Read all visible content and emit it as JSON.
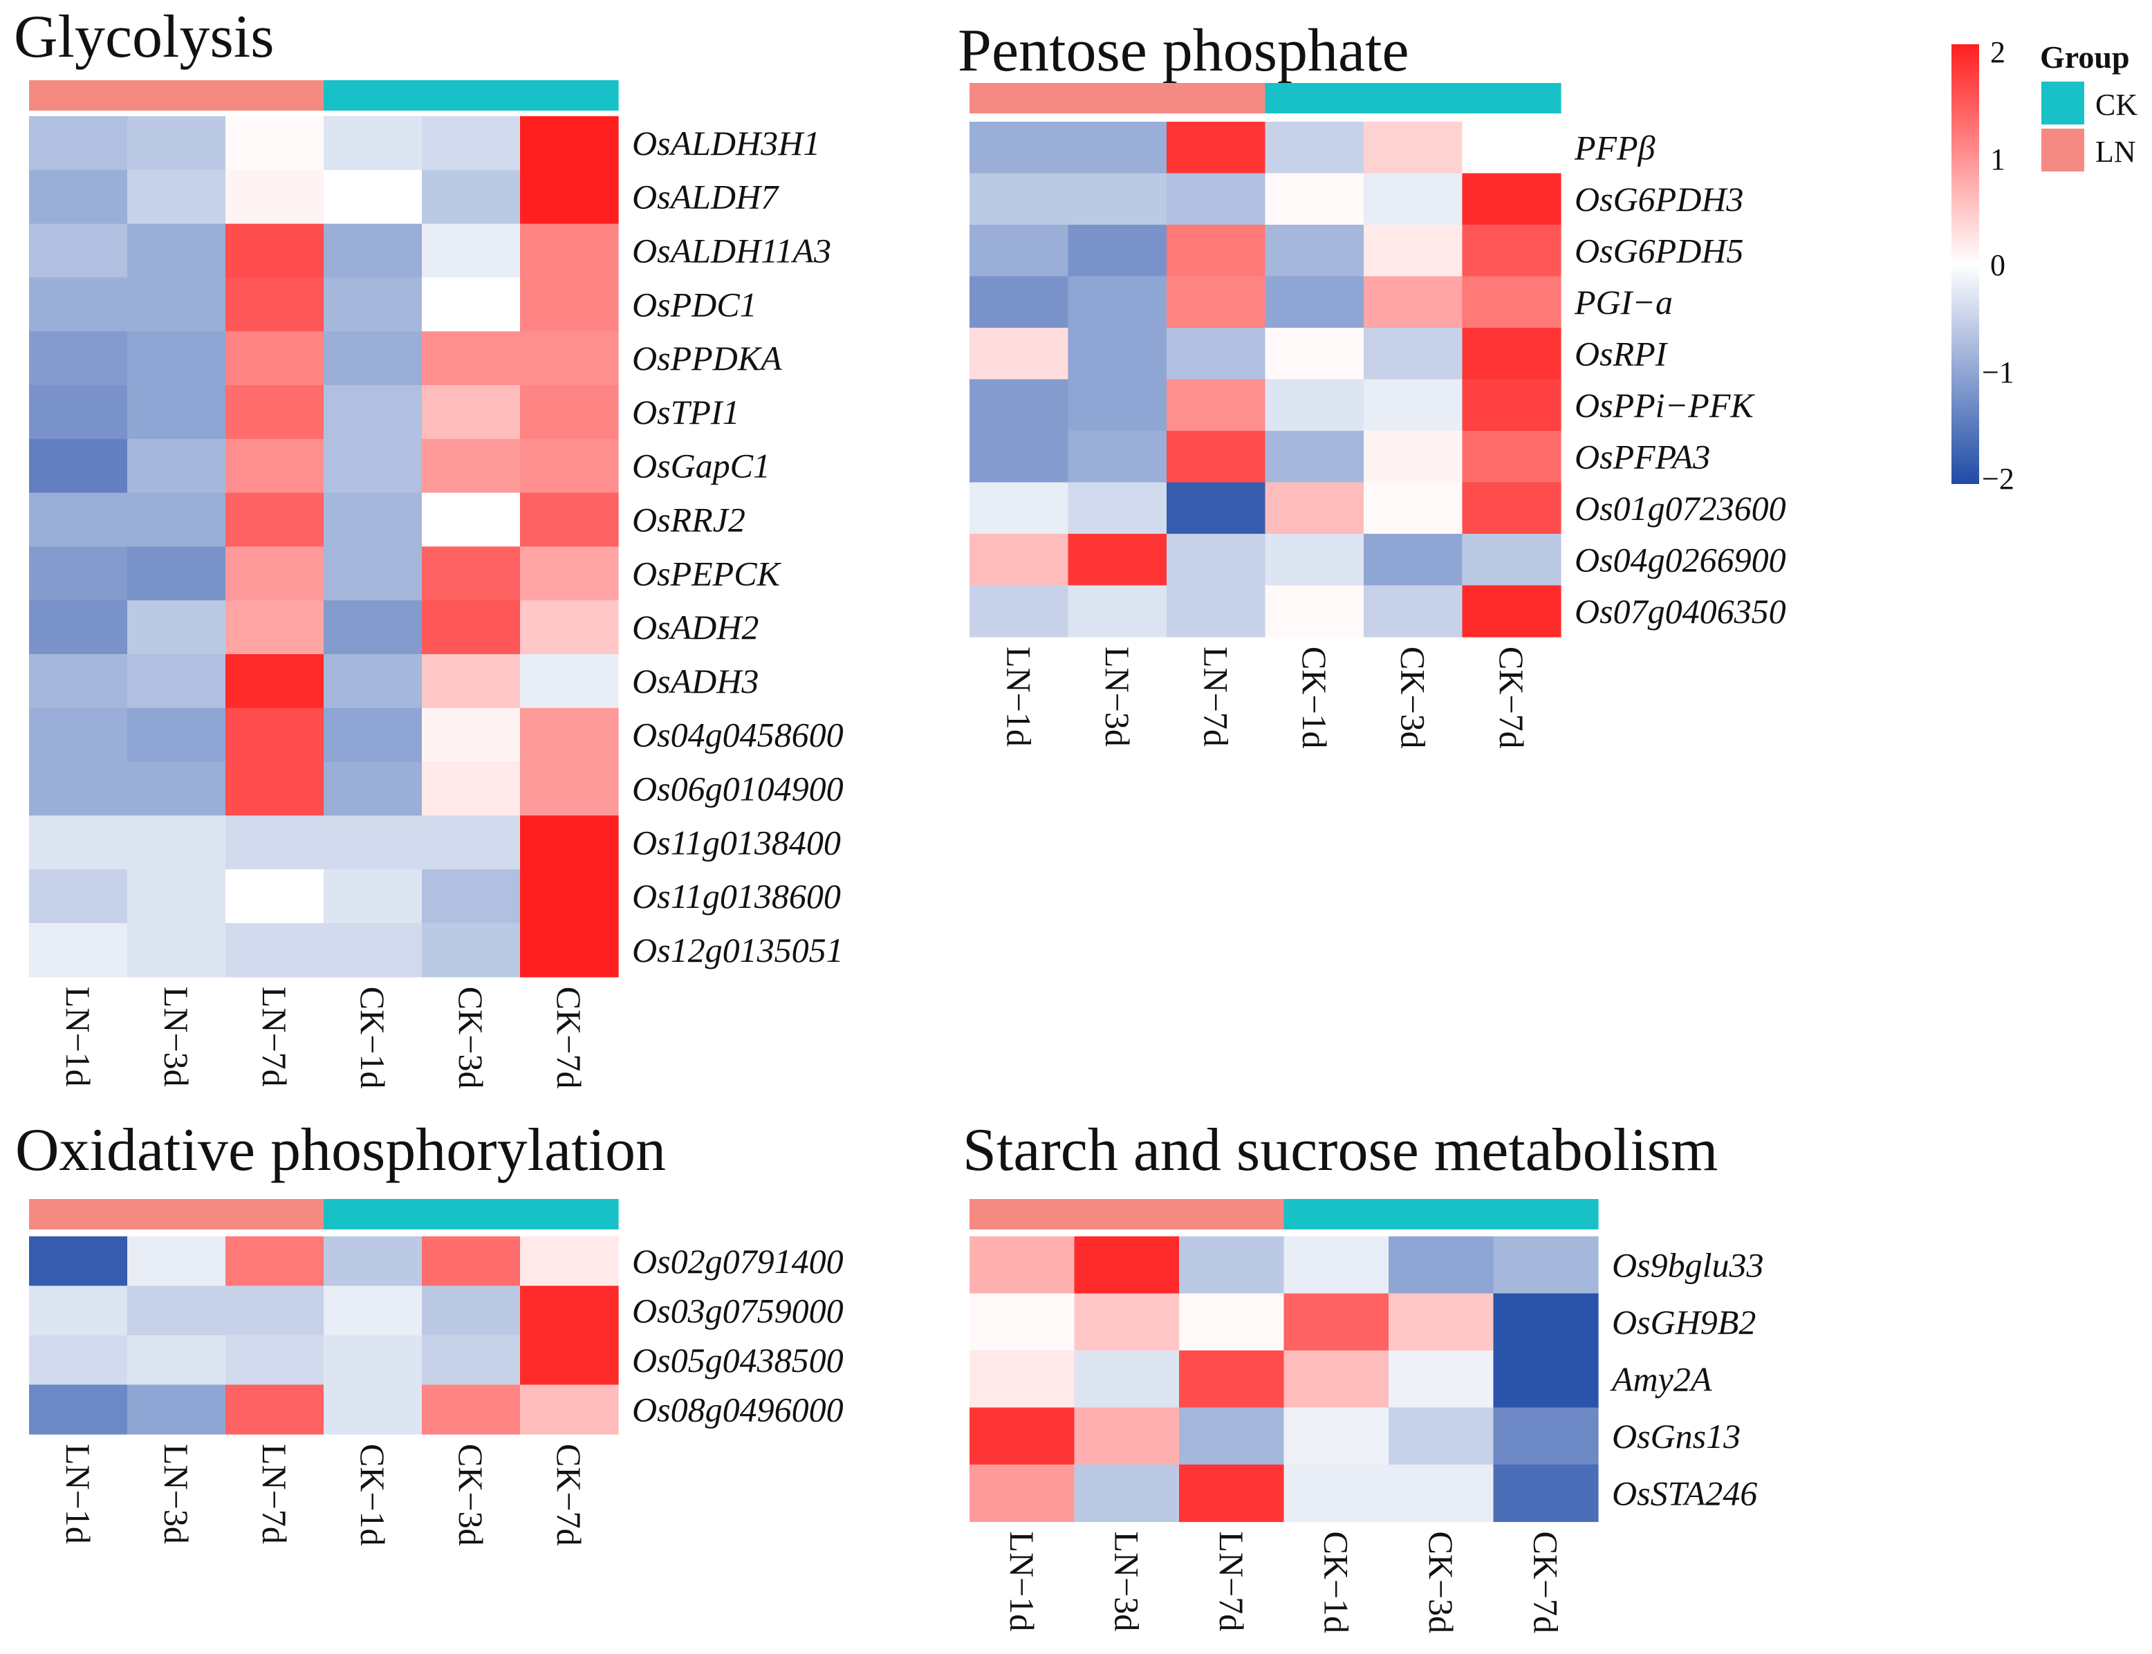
{
  "colors": {
    "low": "#1f4aa6",
    "mid": "#ffffff",
    "high": "#ff1f1f",
    "group_CK": "#18c1c8",
    "group_LN": "#f58a83"
  },
  "legend": {
    "scale_labels": [
      "2",
      "1",
      "0",
      "−1",
      "−2"
    ],
    "scale_values": [
      2,
      1,
      0,
      -1,
      -2
    ],
    "group_title": "Group",
    "groups": [
      {
        "name": "CK",
        "color": "#18c1c8"
      },
      {
        "name": "LN",
        "color": "#f58a83"
      }
    ]
  },
  "chart_data": [
    {
      "type": "heatmap",
      "title": "Glycolysis",
      "value_range": [
        -2,
        2
      ],
      "columns": [
        "LN−1d",
        "LN−3d",
        "LN−7d",
        "CK−1d",
        "CK−3d",
        "CK−7d"
      ],
      "column_groups": [
        "LN",
        "LN",
        "LN",
        "CK",
        "CK",
        "CK"
      ],
      "rows": [
        "OsALDH3H1",
        "OsALDH7",
        "OsALDH11A3",
        "OsPDC1",
        "OsPPDKA",
        "OsTPI1",
        "OsGapC1",
        "OsRRJ2",
        "OsPEPCK",
        "OsADH2",
        "OsADH3",
        "Os04g0458600",
        "Os06g0104900",
        "Os11g0138400",
        "Os11g0138600",
        "Os12g0135051"
      ],
      "values": [
        [
          -0.7,
          -0.6,
          0.05,
          -0.3,
          -0.4,
          2.0
        ],
        [
          -0.9,
          -0.5,
          0.1,
          0.0,
          -0.6,
          2.0
        ],
        [
          -0.7,
          -0.9,
          1.6,
          -0.9,
          -0.2,
          1.1
        ],
        [
          -0.9,
          -0.9,
          1.5,
          -0.8,
          0.0,
          1.1
        ],
        [
          -1.1,
          -1.0,
          1.1,
          -0.9,
          1.0,
          1.0
        ],
        [
          -1.2,
          -1.0,
          1.3,
          -0.7,
          0.6,
          1.1
        ],
        [
          -1.4,
          -0.8,
          1.0,
          -0.7,
          0.9,
          1.0
        ],
        [
          -0.9,
          -0.9,
          1.4,
          -0.8,
          0.0,
          1.4
        ],
        [
          -1.1,
          -1.2,
          0.9,
          -0.8,
          1.4,
          0.8
        ],
        [
          -1.2,
          -0.6,
          0.8,
          -1.1,
          1.5,
          0.5
        ],
        [
          -0.8,
          -0.7,
          1.9,
          -0.8,
          0.5,
          -0.2
        ],
        [
          -0.9,
          -1.0,
          1.6,
          -1.0,
          0.1,
          0.9
        ],
        [
          -0.9,
          -0.9,
          1.6,
          -0.9,
          0.2,
          0.9
        ],
        [
          -0.3,
          -0.3,
          -0.4,
          -0.4,
          -0.4,
          2.0
        ],
        [
          -0.5,
          -0.3,
          0.0,
          -0.3,
          -0.7,
          2.0
        ],
        [
          -0.2,
          -0.3,
          -0.4,
          -0.4,
          -0.6,
          2.0
        ]
      ]
    },
    {
      "type": "heatmap",
      "title": "Pentose phosphate",
      "value_range": [
        -2,
        2
      ],
      "columns": [
        "LN−1d",
        "LN−3d",
        "LN−7d",
        "CK−1d",
        "CK−3d",
        "CK−7d"
      ],
      "column_groups": [
        "LN",
        "LN",
        "LN",
        "CK",
        "CK",
        "CK"
      ],
      "rows": [
        "PFPβ",
        "OsG6PDH3",
        "OsG6PDH5",
        "PGI−a",
        "OsRPI",
        "OsPPi−PFK",
        "OsPFPA3",
        "Os01g0723600",
        "Os04g0266900",
        "Os07g0406350"
      ],
      "values": [
        [
          -0.9,
          -0.9,
          1.8,
          -0.5,
          0.4,
          0.0
        ],
        [
          -0.6,
          -0.6,
          -0.7,
          0.05,
          -0.2,
          1.9
        ],
        [
          -0.9,
          -1.2,
          1.2,
          -0.8,
          0.2,
          1.5
        ],
        [
          -1.2,
          -1.0,
          1.1,
          -1.0,
          0.8,
          1.2
        ],
        [
          0.3,
          -1.0,
          -0.7,
          0.05,
          -0.5,
          1.8
        ],
        [
          -1.1,
          -1.0,
          1.0,
          -0.3,
          -0.2,
          1.7
        ],
        [
          -1.1,
          -0.9,
          1.6,
          -0.8,
          0.1,
          1.3
        ],
        [
          -0.2,
          -0.4,
          -1.8,
          0.6,
          0.05,
          1.6
        ],
        [
          0.6,
          1.8,
          -0.5,
          -0.3,
          -1.0,
          -0.6
        ],
        [
          -0.5,
          -0.3,
          -0.5,
          0.05,
          -0.5,
          1.9
        ]
      ]
    },
    {
      "type": "heatmap",
      "title": "Oxidative phosphorylation",
      "value_range": [
        -2,
        2
      ],
      "columns": [
        "LN−1d",
        "LN−3d",
        "LN−7d",
        "CK−1d",
        "CK−3d",
        "CK−7d"
      ],
      "column_groups": [
        "LN",
        "LN",
        "LN",
        "CK",
        "CK",
        "CK"
      ],
      "rows": [
        "Os02g0791400",
        "Os03g0759000",
        "Os05g0438500",
        "Os08g0496000"
      ],
      "values": [
        [
          -1.8,
          -0.2,
          1.2,
          -0.6,
          1.3,
          0.2
        ],
        [
          -0.3,
          -0.5,
          -0.5,
          -0.2,
          -0.6,
          1.9
        ],
        [
          -0.4,
          -0.3,
          -0.4,
          -0.3,
          -0.5,
          1.9
        ],
        [
          -1.3,
          -1.0,
          1.4,
          -0.3,
          1.1,
          0.6
        ]
      ]
    },
    {
      "type": "heatmap",
      "title": "Starch and sucrose metabolism",
      "value_range": [
        -2,
        2
      ],
      "columns": [
        "LN−1d",
        "LN−3d",
        "LN−7d",
        "CK−1d",
        "CK−3d",
        "CK−7d"
      ],
      "column_groups": [
        "LN",
        "LN",
        "LN",
        "CK",
        "CK",
        "CK"
      ],
      "rows": [
        "Os9bglu33",
        "OsGH9B2",
        "Amy2A",
        "OsGns13",
        "OsSTA246"
      ],
      "values": [
        [
          0.7,
          1.9,
          -0.6,
          -0.2,
          -1.0,
          -0.8
        ],
        [
          0.05,
          0.5,
          0.05,
          1.4,
          0.5,
          -1.9
        ],
        [
          0.2,
          -0.3,
          1.6,
          0.6,
          -0.15,
          -1.9
        ],
        [
          1.8,
          0.7,
          -0.8,
          -0.15,
          -0.5,
          -1.3
        ],
        [
          0.9,
          -0.6,
          1.8,
          -0.2,
          -0.2,
          -1.6
        ]
      ]
    }
  ]
}
